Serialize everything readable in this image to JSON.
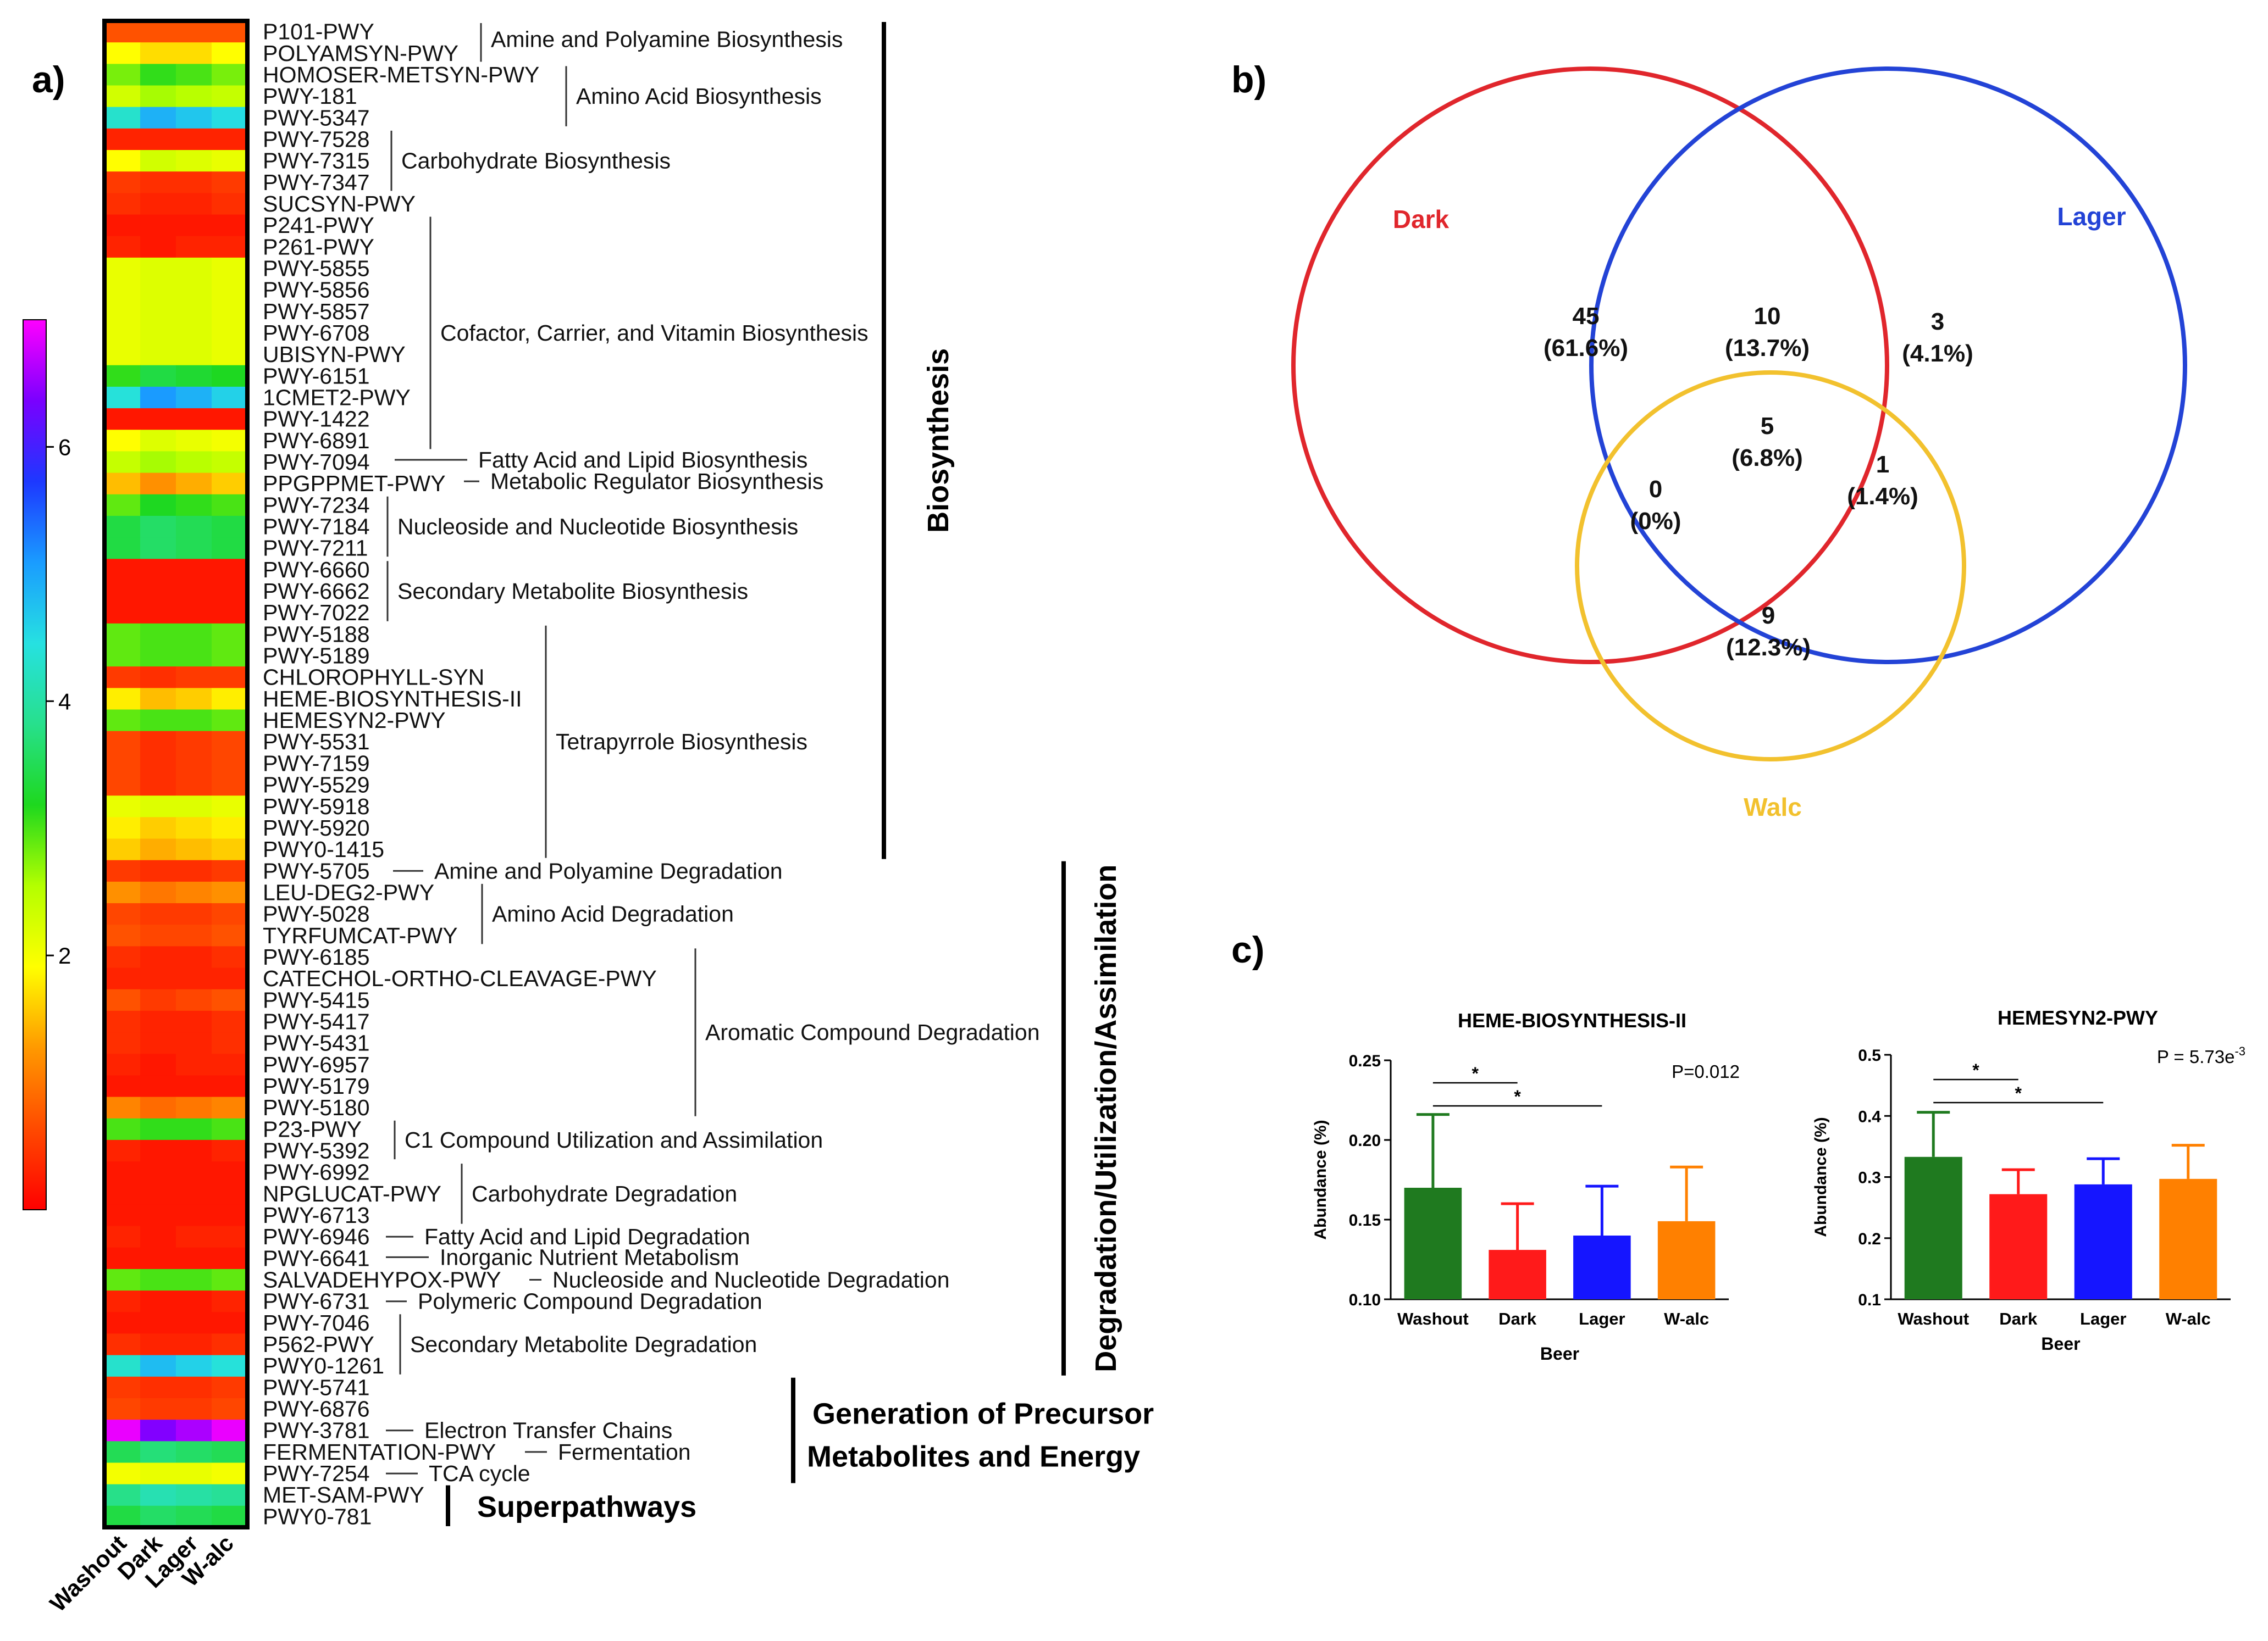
{
  "panels": {
    "a": "a)",
    "b": "b)",
    "c": "c)"
  },
  "chart_data": [
    {
      "type": "heatmap",
      "panel": "a)",
      "columns": [
        "Washout",
        "Dark",
        "Lager",
        "W-alc"
      ],
      "colorbar": {
        "ticks": [
          2,
          4,
          6
        ],
        "range": [
          0,
          7
        ],
        "stops": [
          "#ff0000",
          "#ff4a00",
          "#ff9900",
          "#ffff00",
          "#b4ff00",
          "#1ed81e",
          "#27e08c",
          "#26e1e1",
          "#1a9cff",
          "#1d38ff",
          "#7a00ff",
          "#ff00ff"
        ]
      },
      "rows": [
        {
          "label": "P101-PWY",
          "v": [
            0.7,
            0.7,
            0.7,
            0.7
          ]
        },
        {
          "label": "POLYAMSYN-PWY",
          "v": [
            1.9,
            1.7,
            1.7,
            1.9
          ]
        },
        {
          "label": "HOMOSER-METSYN-PWY",
          "v": [
            2.8,
            3.1,
            3.0,
            2.8
          ]
        },
        {
          "label": "PWY-181",
          "v": [
            2.3,
            2.6,
            2.5,
            2.4
          ]
        },
        {
          "label": "PWY-5347",
          "v": [
            4.3,
            4.9,
            4.7,
            4.5
          ]
        },
        {
          "label": "PWY-7528",
          "v": [
            0.3,
            0.3,
            0.3,
            0.3
          ]
        },
        {
          "label": "PWY-7315",
          "v": [
            1.9,
            2.3,
            2.2,
            2.1
          ]
        },
        {
          "label": "PWY-7347",
          "v": [
            0.5,
            0.4,
            0.4,
            0.5
          ]
        },
        {
          "label": "SUCSYN-PWY",
          "v": [
            0.4,
            0.3,
            0.3,
            0.4
          ]
        },
        {
          "label": "P241-PWY",
          "v": [
            0.2,
            0.2,
            0.2,
            0.2
          ]
        },
        {
          "label": "P261-PWY",
          "v": [
            0.3,
            0.2,
            0.3,
            0.3
          ]
        },
        {
          "label": "PWY-5855",
          "v": [
            2.1,
            2.2,
            2.2,
            2.1
          ]
        },
        {
          "label": "PWY-5856",
          "v": [
            2.1,
            2.2,
            2.2,
            2.1
          ]
        },
        {
          "label": "PWY-5857",
          "v": [
            2.1,
            2.2,
            2.2,
            2.1
          ]
        },
        {
          "label": "PWY-6708",
          "v": [
            2.1,
            2.2,
            2.2,
            2.1
          ]
        },
        {
          "label": "UBISYN-PWY",
          "v": [
            2.1,
            2.2,
            2.2,
            2.1
          ]
        },
        {
          "label": "PWY-6151",
          "v": [
            3.1,
            3.4,
            3.3,
            3.2
          ]
        },
        {
          "label": "1CMET2-PWY",
          "v": [
            4.4,
            5.1,
            4.9,
            4.6
          ]
        },
        {
          "label": "PWY-1422",
          "v": [
            0.2,
            0.2,
            0.2,
            0.2
          ]
        },
        {
          "label": "PWY-6891",
          "v": [
            1.9,
            2.2,
            2.1,
            2.0
          ]
        },
        {
          "label": "PWY-7094",
          "v": [
            2.4,
            2.6,
            2.5,
            2.4
          ]
        },
        {
          "label": "PPGPPMET-PWY",
          "v": [
            1.5,
            1.2,
            1.4,
            1.6
          ]
        },
        {
          "label": "PWY-7234",
          "v": [
            2.9,
            3.2,
            3.1,
            3.0
          ]
        },
        {
          "label": "PWY-7184",
          "v": [
            3.4,
            3.6,
            3.5,
            3.4
          ]
        },
        {
          "label": "PWY-7211",
          "v": [
            3.4,
            3.6,
            3.5,
            3.4
          ]
        },
        {
          "label": "PWY-6660",
          "v": [
            0.2,
            0.2,
            0.2,
            0.2
          ]
        },
        {
          "label": "PWY-6662",
          "v": [
            0.2,
            0.2,
            0.2,
            0.2
          ]
        },
        {
          "label": "PWY-7022",
          "v": [
            0.2,
            0.2,
            0.2,
            0.2
          ]
        },
        {
          "label": "PWY-5188",
          "v": [
            2.9,
            3.0,
            3.0,
            2.9
          ]
        },
        {
          "label": "PWY-5189",
          "v": [
            2.9,
            3.0,
            3.0,
            2.9
          ]
        },
        {
          "label": "CHLOROPHYLL-SYN",
          "v": [
            0.5,
            0.4,
            0.5,
            0.5
          ]
        },
        {
          "label": "HEME-BIOSYNTHESIS-II",
          "v": [
            1.8,
            1.5,
            1.6,
            1.8
          ]
        },
        {
          "label": "HEMESYN2-PWY",
          "v": [
            2.9,
            3.0,
            3.0,
            2.9
          ]
        },
        {
          "label": "PWY-5531",
          "v": [
            0.6,
            0.4,
            0.5,
            0.6
          ]
        },
        {
          "label": "PWY-7159",
          "v": [
            0.6,
            0.4,
            0.5,
            0.6
          ]
        },
        {
          "label": "PWY-5529",
          "v": [
            0.6,
            0.4,
            0.5,
            0.6
          ]
        },
        {
          "label": "PWY-5918",
          "v": [
            2.1,
            2.2,
            2.2,
            2.1
          ]
        },
        {
          "label": "PWY-5920",
          "v": [
            1.8,
            1.6,
            1.7,
            1.8
          ]
        },
        {
          "label": "PWY0-1415",
          "v": [
            1.6,
            1.4,
            1.5,
            1.6
          ]
        },
        {
          "label": "PWY-5705",
          "v": [
            0.5,
            0.4,
            0.4,
            0.5
          ]
        },
        {
          "label": "LEU-DEG2-PWY",
          "v": [
            1.2,
            1.0,
            1.1,
            1.2
          ]
        },
        {
          "label": "PWY-5028",
          "v": [
            0.6,
            0.5,
            0.5,
            0.6
          ]
        },
        {
          "label": "TYRFUMCAT-PWY",
          "v": [
            0.7,
            0.6,
            0.6,
            0.7
          ]
        },
        {
          "label": "PWY-6185",
          "v": [
            0.4,
            0.3,
            0.3,
            0.4
          ]
        },
        {
          "label": "CATECHOL-ORTHO-CLEAVAGE-PWY",
          "v": [
            0.3,
            0.3,
            0.3,
            0.3
          ]
        },
        {
          "label": "PWY-5415",
          "v": [
            0.7,
            0.5,
            0.6,
            0.7
          ]
        },
        {
          "label": "PWY-5417",
          "v": [
            0.4,
            0.3,
            0.3,
            0.4
          ]
        },
        {
          "label": "PWY-5431",
          "v": [
            0.4,
            0.3,
            0.3,
            0.4
          ]
        },
        {
          "label": "PWY-6957",
          "v": [
            0.3,
            0.2,
            0.3,
            0.3
          ]
        },
        {
          "label": "PWY-5179",
          "v": [
            0.2,
            0.2,
            0.2,
            0.2
          ]
        },
        {
          "label": "PWY-5180",
          "v": [
            1.1,
            0.9,
            1.0,
            1.1
          ]
        },
        {
          "label": "P23-PWY",
          "v": [
            3.0,
            3.1,
            3.1,
            3.0
          ]
        },
        {
          "label": "PWY-5392",
          "v": [
            0.3,
            0.2,
            0.2,
            0.3
          ]
        },
        {
          "label": "PWY-6992",
          "v": [
            0.2,
            0.2,
            0.2,
            0.2
          ]
        },
        {
          "label": "NPGLUCAT-PWY",
          "v": [
            0.2,
            0.2,
            0.2,
            0.2
          ]
        },
        {
          "label": "PWY-6713",
          "v": [
            0.2,
            0.2,
            0.2,
            0.2
          ]
        },
        {
          "label": "PWY-6946",
          "v": [
            0.3,
            0.2,
            0.3,
            0.3
          ]
        },
        {
          "label": "PWY-6641",
          "v": [
            0.2,
            0.2,
            0.2,
            0.2
          ]
        },
        {
          "label": "SALVADEHYPOX-PWY",
          "v": [
            2.9,
            3.0,
            3.0,
            2.9
          ]
        },
        {
          "label": "PWY-6731",
          "v": [
            0.3,
            0.2,
            0.2,
            0.3
          ]
        },
        {
          "label": "PWY-7046",
          "v": [
            0.2,
            0.2,
            0.2,
            0.2
          ]
        },
        {
          "label": "P562-PWY",
          "v": [
            0.4,
            0.3,
            0.3,
            0.4
          ]
        },
        {
          "label": "PWY0-1261",
          "v": [
            4.3,
            4.8,
            4.6,
            4.4
          ]
        },
        {
          "label": "PWY-5741",
          "v": [
            0.5,
            0.4,
            0.4,
            0.5
          ]
        },
        {
          "label": "PWY-6876",
          "v": [
            0.6,
            0.5,
            0.5,
            0.6
          ]
        },
        {
          "label": "PWY-3781",
          "v": [
            6.9,
            6.4,
            6.6,
            6.9
          ]
        },
        {
          "label": "FERMENTATION-PWY",
          "v": [
            3.5,
            3.7,
            3.6,
            3.5
          ]
        },
        {
          "label": "PWY-7254",
          "v": [
            2.0,
            2.1,
            2.1,
            2.0
          ]
        },
        {
          "label": "MET-SAM-PWY",
          "v": [
            3.8,
            4.1,
            4.0,
            3.9
          ]
        },
        {
          "label": "PWY0-781",
          "v": [
            3.4,
            3.6,
            3.5,
            3.4
          ]
        }
      ],
      "subgroups": [
        {
          "label": "Amine and Polyamine Biosynthesis",
          "from": 0,
          "to": 1,
          "style": "bar"
        },
        {
          "label": "Amino Acid Biosynthesis",
          "from": 2,
          "to": 4,
          "style": "bar"
        },
        {
          "label": "Carbohydrate Biosynthesis",
          "from": 5,
          "to": 7,
          "style": "bar"
        },
        {
          "label": "Cofactor, Carrier, and Vitamin Biosynthesis",
          "from": 9,
          "to": 19,
          "style": "bar"
        },
        {
          "label": "Fatty Acid and Lipid Biosynthesis",
          "from": 20,
          "to": 20,
          "style": "dash"
        },
        {
          "label": "Metabolic Regulator Biosynthesis",
          "from": 21,
          "to": 21,
          "style": "dash"
        },
        {
          "label": "Nucleoside and Nucleotide Biosynthesis",
          "from": 22,
          "to": 24,
          "style": "bar"
        },
        {
          "label": "Secondary Metabolite Biosynthesis",
          "from": 25,
          "to": 27,
          "style": "bar"
        },
        {
          "label": "Tetrapyrrole Biosynthesis",
          "from": 28,
          "to": 38,
          "style": "bar"
        },
        {
          "label": "Amine and Polyamine Degradation",
          "from": 39,
          "to": 39,
          "style": "dash"
        },
        {
          "label": "Amino Acid Degradation",
          "from": 40,
          "to": 42,
          "style": "bar"
        },
        {
          "label": "Aromatic Compound Degradation",
          "from": 43,
          "to": 50,
          "style": "bar"
        },
        {
          "label": "C1 Compound Utilization and Assimilation",
          "from": 51,
          "to": 52,
          "style": "bar"
        },
        {
          "label": "Carbohydrate Degradation",
          "from": 53,
          "to": 55,
          "style": "bar"
        },
        {
          "label": "Fatty Acid and Lipid Degradation",
          "from": 56,
          "to": 56,
          "style": "dash"
        },
        {
          "label": "Inorganic Nutrient Metabolism",
          "from": 57,
          "to": 57,
          "style": "dash"
        },
        {
          "label": "Nucleoside and Nucleotide Degradation",
          "from": 58,
          "to": 58,
          "style": "dash"
        },
        {
          "label": "Polymeric Compound Degradation",
          "from": 59,
          "to": 59,
          "style": "dash"
        },
        {
          "label": "Secondary Metabolite Degradation",
          "from": 60,
          "to": 62,
          "style": "bar"
        },
        {
          "label": "Electron Transfer Chains",
          "from": 65,
          "to": 65,
          "style": "dash"
        },
        {
          "label": "Fermentation",
          "from": 66,
          "to": 66,
          "style": "dash"
        },
        {
          "label": "TCA cycle",
          "from": 67,
          "to": 67,
          "style": "dash"
        }
      ],
      "supergroups": [
        {
          "lines": [
            "Biosynthesis"
          ],
          "from": 0,
          "to": 38,
          "orient": "vertical"
        },
        {
          "lines": [
            "Degradation/Utilization/Assimilation"
          ],
          "from": 39,
          "to": 62,
          "orient": "vertical"
        },
        {
          "lines": [
            "Generation of Precursor",
            "Metabolites and Energy"
          ],
          "from": 63,
          "to": 67,
          "orient": "horizontal"
        },
        {
          "lines": [
            "Superpathways"
          ],
          "from": 68,
          "to": 69,
          "orient": "horizontal"
        }
      ]
    },
    {
      "type": "venn",
      "panel": "b)",
      "sets": [
        {
          "name": "Dark",
          "color": "#e0262c"
        },
        {
          "name": "Lager",
          "color": "#2343d6"
        },
        {
          "name": "Walc",
          "color": "#f2c12e"
        }
      ],
      "regions": [
        {
          "sets": [
            "Dark"
          ],
          "count": "45",
          "pct": "(61.6%)"
        },
        {
          "sets": [
            "Dark",
            "Lager"
          ],
          "count": "10",
          "pct": "(13.7%)"
        },
        {
          "sets": [
            "Lager"
          ],
          "count": "3",
          "pct": "(4.1%)"
        },
        {
          "sets": [
            "Dark",
            "Lager",
            "Walc"
          ],
          "count": "5",
          "pct": "(6.8%)"
        },
        {
          "sets": [
            "Dark",
            "Walc"
          ],
          "count": "0",
          "pct": "(0%)"
        },
        {
          "sets": [
            "Lager",
            "Walc"
          ],
          "count": "1",
          "pct": "(1.4%)"
        },
        {
          "sets": [
            "Walc"
          ],
          "count": "9",
          "pct": "(12.3%)"
        }
      ]
    },
    {
      "type": "bar",
      "panel": "c)",
      "title": "HEME-BIOSYNTHESIS-II",
      "categories": [
        "Washout",
        "Dark",
        "Lager",
        "W-alc"
      ],
      "values": [
        0.17,
        0.131,
        0.14,
        0.149
      ],
      "errors": [
        0.046,
        0.029,
        0.031,
        0.034
      ],
      "colors": [
        "#1f7a1f",
        "#ff1a1a",
        "#1515ff",
        "#ff8000"
      ],
      "xlabel": "Beer",
      "ylabel": "Abundance (%)",
      "ylim": [
        0.1,
        0.25
      ],
      "yticks": [
        "0.10",
        "0.15",
        "0.20",
        "0.25"
      ],
      "pvalue": "P=0.012",
      "significance": [
        {
          "from": 0,
          "to": 1,
          "label": "*"
        },
        {
          "from": 0,
          "to": 2,
          "label": "*"
        }
      ]
    },
    {
      "type": "bar",
      "panel": "c)",
      "title": "HEMESYN2-PWY",
      "categories": [
        "Washout",
        "Dark",
        "Lager",
        "W-alc"
      ],
      "values": [
        0.333,
        0.272,
        0.288,
        0.297
      ],
      "errors": [
        0.073,
        0.04,
        0.042,
        0.055
      ],
      "colors": [
        "#1f7a1f",
        "#ff1a1a",
        "#1515ff",
        "#ff8000"
      ],
      "xlabel": "Beer",
      "ylabel": "Abundance (%)",
      "ylim": [
        0.1,
        0.5
      ],
      "yticks": [
        "0.1",
        "0.2",
        "0.3",
        "0.4",
        "0.5"
      ],
      "pvalue": "P = 5.73e",
      "pvalue_exp": "-3",
      "significance": [
        {
          "from": 0,
          "to": 1,
          "label": "*"
        },
        {
          "from": 0,
          "to": 2,
          "label": "*"
        }
      ]
    }
  ]
}
